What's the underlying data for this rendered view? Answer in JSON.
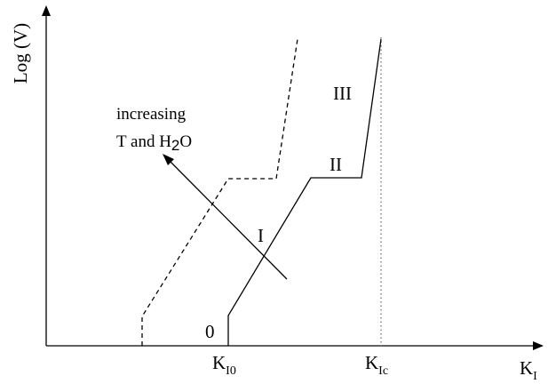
{
  "axes": {
    "ylabel": "Log (V)",
    "xlabel": "K",
    "xlabel_sub": "I",
    "ticks": [
      {
        "main": "K",
        "sub": "I0"
      },
      {
        "main": "K",
        "sub": "Ic"
      }
    ]
  },
  "regions": {
    "r0": "0",
    "r1": "I",
    "r2": "II",
    "r3": "III"
  },
  "annotation": {
    "line1": "increasing",
    "line2_pre": "T and H",
    "line2_sub": "2",
    "line2_post": "O"
  },
  "style": {
    "ink": "#000000",
    "critical_line": "#666666"
  }
}
